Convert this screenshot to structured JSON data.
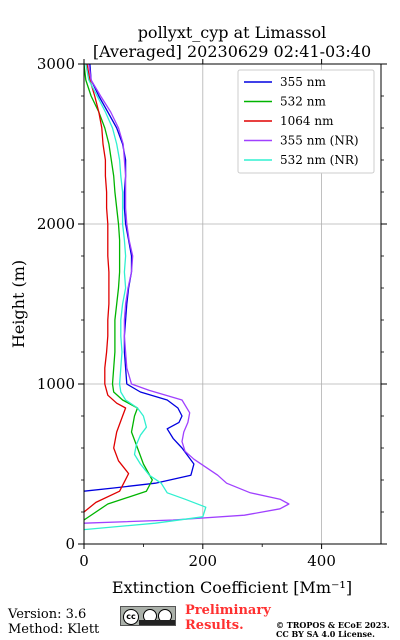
{
  "chart_data": {
    "type": "line",
    "title": "pollyxt_cyp at Limassol",
    "subtitle": "[Averaged] 20230629 02:41-03:40",
    "xlabel": "Extinction Coefficient [Mm⁻¹]",
    "ylabel": "Height (m)",
    "xlim": [
      0,
      500
    ],
    "ylim": [
      0,
      3000
    ],
    "xticks": [
      "0",
      "200",
      "400"
    ],
    "yticks": [
      "0",
      "1000",
      "2000",
      "3000"
    ],
    "grid": true,
    "legend": "top-right",
    "series": [
      {
        "name": "355 nm",
        "color": "#0000e0",
        "points": [
          [
            0,
            330
          ],
          [
            50,
            350
          ],
          [
            120,
            380
          ],
          [
            180,
            430
          ],
          [
            185,
            500
          ],
          [
            165,
            600
          ],
          [
            150,
            660
          ],
          [
            140,
            720
          ],
          [
            160,
            760
          ],
          [
            165,
            800
          ],
          [
            158,
            850
          ],
          [
            140,
            900
          ],
          [
            95,
            950
          ],
          [
            72,
            1000
          ],
          [
            70,
            1100
          ],
          [
            68,
            1200
          ],
          [
            68,
            1300
          ],
          [
            70,
            1400
          ],
          [
            72,
            1500
          ],
          [
            75,
            1600
          ],
          [
            80,
            1700
          ],
          [
            80,
            1800
          ],
          [
            75,
            1900
          ],
          [
            70,
            2000
          ],
          [
            68,
            2100
          ],
          [
            68,
            2200
          ],
          [
            70,
            2300
          ],
          [
            70,
            2400
          ],
          [
            65,
            2500
          ],
          [
            55,
            2600
          ],
          [
            40,
            2700
          ],
          [
            25,
            2800
          ],
          [
            12,
            2900
          ],
          [
            10,
            3000
          ]
        ]
      },
      {
        "name": "532 nm",
        "color": "#00b400",
        "points": [
          [
            0,
            150
          ],
          [
            40,
            250
          ],
          [
            105,
            330
          ],
          [
            115,
            400
          ],
          [
            100,
            500
          ],
          [
            90,
            600
          ],
          [
            80,
            700
          ],
          [
            85,
            800
          ],
          [
            90,
            850
          ],
          [
            65,
            900
          ],
          [
            50,
            950
          ],
          [
            48,
            1000
          ],
          [
            50,
            1100
          ],
          [
            52,
            1200
          ],
          [
            52,
            1300
          ],
          [
            52,
            1400
          ],
          [
            55,
            1500
          ],
          [
            58,
            1600
          ],
          [
            60,
            1700
          ],
          [
            60,
            1800
          ],
          [
            60,
            1900
          ],
          [
            58,
            2000
          ],
          [
            55,
            2100
          ],
          [
            52,
            2200
          ],
          [
            50,
            2300
          ],
          [
            46,
            2400
          ],
          [
            42,
            2500
          ],
          [
            35,
            2600
          ],
          [
            25,
            2700
          ],
          [
            12,
            2800
          ],
          [
            3,
            2900
          ],
          [
            0,
            3000
          ]
        ]
      },
      {
        "name": "1064 nm",
        "color": "#e00000",
        "points": [
          [
            0,
            200
          ],
          [
            20,
            260
          ],
          [
            60,
            330
          ],
          [
            75,
            440
          ],
          [
            58,
            520
          ],
          [
            50,
            600
          ],
          [
            55,
            700
          ],
          [
            65,
            800
          ],
          [
            70,
            850
          ],
          [
            55,
            880
          ],
          [
            40,
            930
          ],
          [
            35,
            1000
          ],
          [
            35,
            1100
          ],
          [
            38,
            1200
          ],
          [
            40,
            1300
          ],
          [
            40,
            1400
          ],
          [
            42,
            1500
          ],
          [
            42,
            1600
          ],
          [
            42,
            1700
          ],
          [
            40,
            1800
          ],
          [
            40,
            1900
          ],
          [
            40,
            2000
          ],
          [
            38,
            2100
          ],
          [
            38,
            2200
          ],
          [
            36,
            2300
          ],
          [
            36,
            2400
          ],
          [
            32,
            2500
          ],
          [
            30,
            2600
          ],
          [
            25,
            2700
          ],
          [
            18,
            2800
          ],
          [
            10,
            2900
          ],
          [
            5,
            3000
          ]
        ]
      },
      {
        "name": "355 nm (NR)",
        "color": "#a040ff",
        "points": [
          [
            0,
            130
          ],
          [
            150,
            150
          ],
          [
            270,
            180
          ],
          [
            330,
            220
          ],
          [
            345,
            250
          ],
          [
            330,
            280
          ],
          [
            280,
            320
          ],
          [
            240,
            380
          ],
          [
            225,
            430
          ],
          [
            205,
            480
          ],
          [
            185,
            530
          ],
          [
            170,
            580
          ],
          [
            165,
            640
          ],
          [
            168,
            700
          ],
          [
            175,
            760
          ],
          [
            178,
            820
          ],
          [
            165,
            900
          ],
          [
            110,
            960
          ],
          [
            80,
            1000
          ],
          [
            72,
            1100
          ],
          [
            70,
            1200
          ],
          [
            68,
            1300
          ],
          [
            68,
            1400
          ],
          [
            70,
            1500
          ],
          [
            74,
            1600
          ],
          [
            80,
            1700
          ],
          [
            82,
            1800
          ],
          [
            76,
            1900
          ],
          [
            72,
            2000
          ],
          [
            70,
            2100
          ],
          [
            70,
            2200
          ],
          [
            70,
            2300
          ],
          [
            68,
            2400
          ],
          [
            66,
            2500
          ],
          [
            58,
            2600
          ],
          [
            45,
            2700
          ],
          [
            28,
            2800
          ],
          [
            12,
            2900
          ],
          [
            8,
            3000
          ]
        ]
      },
      {
        "name": "532 nm (NR)",
        "color": "#30f0d0",
        "points": [
          [
            0,
            90
          ],
          [
            120,
            130
          ],
          [
            200,
            170
          ],
          [
            205,
            230
          ],
          [
            170,
            280
          ],
          [
            140,
            320
          ],
          [
            130,
            380
          ],
          [
            110,
            430
          ],
          [
            95,
            500
          ],
          [
            85,
            560
          ],
          [
            88,
            620
          ],
          [
            95,
            680
          ],
          [
            105,
            730
          ],
          [
            100,
            800
          ],
          [
            90,
            850
          ],
          [
            70,
            900
          ],
          [
            62,
            950
          ],
          [
            60,
            1000
          ],
          [
            62,
            1100
          ],
          [
            64,
            1200
          ],
          [
            62,
            1300
          ],
          [
            62,
            1400
          ],
          [
            65,
            1500
          ],
          [
            70,
            1600
          ],
          [
            68,
            1700
          ],
          [
            70,
            1800
          ],
          [
            68,
            1900
          ],
          [
            65,
            2000
          ],
          [
            65,
            2100
          ],
          [
            65,
            2200
          ],
          [
            62,
            2300
          ],
          [
            60,
            2400
          ],
          [
            55,
            2500
          ],
          [
            48,
            2600
          ],
          [
            36,
            2700
          ],
          [
            22,
            2800
          ],
          [
            8,
            2900
          ],
          [
            3,
            3000
          ]
        ]
      }
    ]
  },
  "footer": {
    "version": "Version: 3.6",
    "method": "Method: Klett",
    "license_badge": "cc",
    "preliminary_line1": "Preliminary",
    "preliminary_line2": "Results.",
    "copyright_line1": "© TROPOS & ECoE 2023.",
    "copyright_line2": "CC BY SA 4.0 License."
  }
}
